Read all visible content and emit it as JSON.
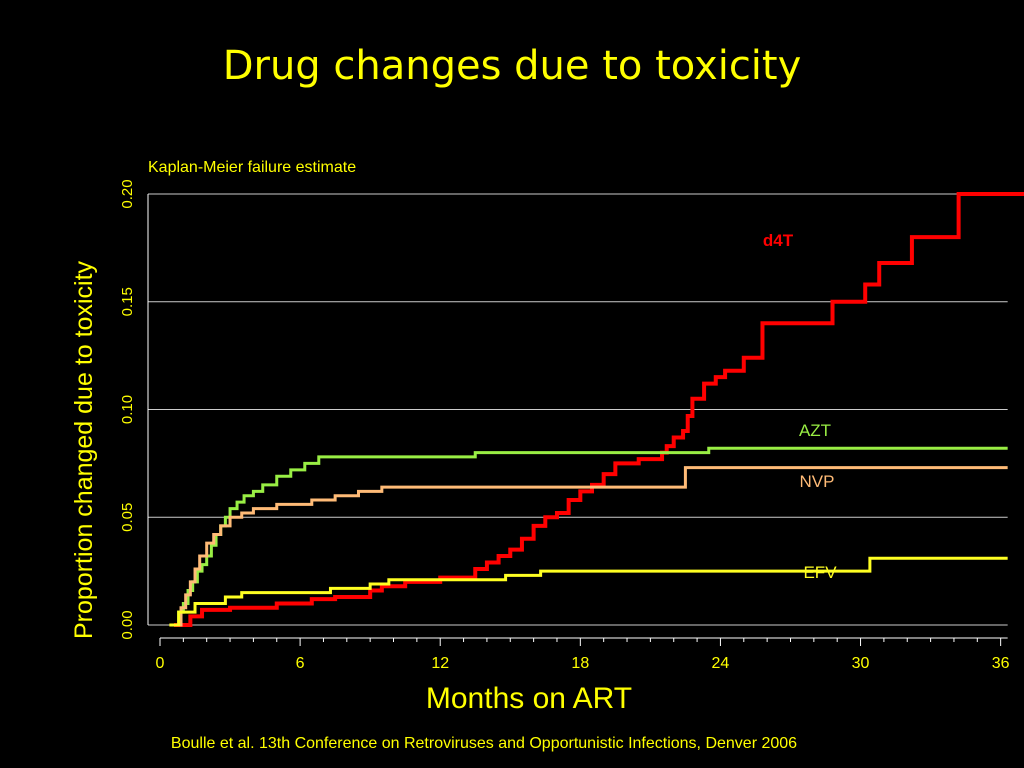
{
  "slide": {
    "title": "Drug changes due to toxicity",
    "citation": "Boulle et al. 13th Conference on Retroviruses and Opportunistic Infections, Denver 2006"
  },
  "colors": {
    "background": "#000000",
    "text": "#ffff00",
    "axis": "#ffffff",
    "grid": "#cccccc"
  },
  "chart_data": {
    "type": "line",
    "subtitle": "Kaplan-Meier failure estimate",
    "xlabel": "Months on ART",
    "ylabel": "Proportion changed due to toxicity",
    "xlim": [
      0,
      37
    ],
    "ylim": [
      0,
      0.2
    ],
    "xticks": [
      "0",
      "6",
      "12",
      "18",
      "24",
      "30",
      "36"
    ],
    "xtick_values": [
      0,
      6,
      12,
      18,
      24,
      30,
      36
    ],
    "yticks": [
      "0.00",
      "0.05",
      "0.10",
      "0.15",
      "0.20"
    ],
    "ytick_values": [
      0,
      0.05,
      0.1,
      0.15,
      0.2
    ],
    "grid": "horizontal",
    "step": true,
    "series": [
      {
        "name": "d4T",
        "color": "#ff0000",
        "label_color": "#ff0000",
        "x": [
          0.6,
          1.3,
          1.8,
          3.0,
          5.0,
          6.5,
          7.5,
          9.0,
          9.5,
          10.5,
          12.0,
          13.5,
          14.0,
          14.5,
          15.0,
          15.5,
          16.0,
          16.5,
          17.0,
          17.5,
          18.0,
          18.5,
          19.0,
          19.5,
          20.5,
          21.5,
          21.7,
          22.0,
          22.4,
          22.6,
          22.8,
          23.3,
          23.8,
          24.2,
          25.0,
          25.8,
          28.8,
          30.2,
          30.8,
          32.2,
          34.2,
          37.0
        ],
        "y": [
          0,
          0.004,
          0.007,
          0.008,
          0.01,
          0.012,
          0.013,
          0.016,
          0.018,
          0.02,
          0.022,
          0.026,
          0.029,
          0.032,
          0.035,
          0.04,
          0.046,
          0.05,
          0.052,
          0.058,
          0.062,
          0.065,
          0.07,
          0.075,
          0.077,
          0.08,
          0.083,
          0.087,
          0.09,
          0.097,
          0.105,
          0.112,
          0.115,
          0.118,
          0.124,
          0.14,
          0.15,
          0.158,
          0.168,
          0.18,
          0.2,
          0.2
        ]
      },
      {
        "name": "AZT",
        "color": "#99ee44",
        "label_color": "#99ee44",
        "x": [
          0.5,
          0.8,
          1.0,
          1.2,
          1.4,
          1.6,
          1.8,
          2.0,
          2.2,
          2.4,
          2.6,
          2.8,
          3.0,
          3.3,
          3.6,
          4.0,
          4.4,
          5.0,
          5.6,
          6.2,
          6.8,
          13.5,
          23.5,
          36.3
        ],
        "y": [
          0,
          0.006,
          0.01,
          0.016,
          0.02,
          0.025,
          0.028,
          0.032,
          0.037,
          0.042,
          0.046,
          0.05,
          0.054,
          0.057,
          0.06,
          0.062,
          0.065,
          0.069,
          0.072,
          0.075,
          0.078,
          0.08,
          0.082,
          0.082
        ]
      },
      {
        "name": "NVP",
        "color": "#ffbb77",
        "label_color": "#ffbb77",
        "x": [
          0.6,
          0.9,
          1.1,
          1.3,
          1.5,
          1.7,
          2.0,
          2.3,
          2.6,
          3.0,
          3.5,
          4.0,
          5.0,
          6.5,
          7.5,
          8.5,
          9.5,
          22.5,
          36.3
        ],
        "y": [
          0,
          0.008,
          0.014,
          0.02,
          0.026,
          0.032,
          0.038,
          0.042,
          0.046,
          0.05,
          0.052,
          0.054,
          0.056,
          0.058,
          0.06,
          0.062,
          0.064,
          0.073,
          0.073
        ]
      },
      {
        "name": "EFV",
        "color": "#ffff22",
        "label_color": "#ffff22",
        "x": [
          0.4,
          0.8,
          1.5,
          2.8,
          3.5,
          7.3,
          9.0,
          9.8,
          14.8,
          16.3,
          30.4,
          36.3
        ],
        "y": [
          0,
          0.006,
          0.01,
          0.013,
          0.015,
          0.017,
          0.019,
          0.021,
          0.023,
          0.025,
          0.031,
          0.031
        ]
      }
    ]
  }
}
